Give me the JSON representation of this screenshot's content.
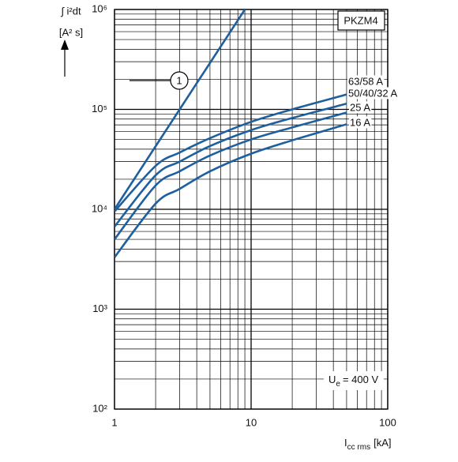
{
  "chart_data": {
    "type": "line",
    "log_x": true,
    "log_y": true,
    "grid": true,
    "minor_grid": true,
    "xlim": [
      1,
      100
    ],
    "xticks": [
      1,
      10,
      100
    ],
    "ylim": [
      100,
      1000000
    ],
    "yticks": [
      {
        "value": 100,
        "label": "10²"
      },
      {
        "value": 1000,
        "label": "10³"
      },
      {
        "value": 10000,
        "label": "10⁴"
      },
      {
        "value": 100000,
        "label": "10⁵"
      },
      {
        "value": 1000000,
        "label": "10⁶"
      }
    ],
    "ylabel": [
      "∫ i²dt",
      "[A² s]"
    ],
    "xlabel": {
      "main": "I",
      "sub": "cc rms",
      "unit": "[kA]"
    },
    "box_label": "PKZM4",
    "voltage_label": {
      "main": "U",
      "sub": "e",
      "rest": "= 400 V"
    },
    "series": [
      {
        "name": "1",
        "color": "#1d5f9f",
        "x": [
          1,
          9
        ],
        "values": [
          10000,
          1000000
        ]
      },
      {
        "name": "63/58 A",
        "color": "#1d5f9f",
        "x": [
          1,
          2,
          3,
          5,
          10,
          20,
          50
        ],
        "values": [
          9500,
          27200,
          37000,
          51500,
          75000,
          100000,
          141000
        ]
      },
      {
        "name": "50/40/32 A",
        "color": "#1d5f9f",
        "x": [
          1,
          2,
          3,
          5,
          10,
          20,
          50
        ],
        "values": [
          6700,
          21900,
          30000,
          42900,
          62000,
          82000,
          114000
        ]
      },
      {
        "name": "25 A",
        "color": "#1d5f9f",
        "x": [
          1,
          2,
          3,
          5,
          10,
          20,
          50
        ],
        "values": [
          5000,
          17300,
          24000,
          34500,
          50000,
          66000,
          93000
        ]
      },
      {
        "name": "16 A",
        "color": "#1d5f9f",
        "x": [
          1,
          2,
          3,
          5,
          10,
          20,
          50
        ],
        "values": [
          3300,
          11400,
          16000,
          24000,
          36000,
          49000,
          71000
        ]
      }
    ]
  }
}
